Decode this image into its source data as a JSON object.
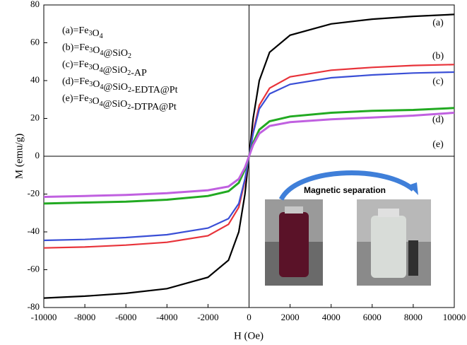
{
  "chart_data": {
    "type": "line",
    "xlabel": "H (Oe)",
    "ylabel": "M (emu/g)",
    "x": [
      -10000,
      -8000,
      -6000,
      -4000,
      -2000,
      -1000,
      -500,
      -200,
      0,
      200,
      500,
      1000,
      2000,
      4000,
      6000,
      8000,
      10000
    ],
    "series": [
      {
        "name": "(a)=Fe3O4",
        "color": "#000000",
        "values": [
          -75,
          -74,
          -72.5,
          -70,
          -64,
          -55,
          -40,
          -20,
          0,
          20,
          40,
          55,
          64,
          70,
          72.5,
          74,
          75
        ]
      },
      {
        "name": "(b)=Fe3O4@SiO2",
        "color": "#e8333a",
        "values": [
          -48.5,
          -48,
          -47,
          -45.5,
          -42,
          -36,
          -27,
          -13,
          0,
          13,
          27,
          36,
          42,
          45.5,
          47,
          48,
          48.5
        ]
      },
      {
        "name": "(c)=Fe3O4@SiO2-AP",
        "color": "#3a4fd6",
        "values": [
          -44.5,
          -44,
          -43,
          -41.5,
          -38,
          -33,
          -25,
          -12,
          0,
          12,
          25,
          33,
          38,
          41.5,
          43,
          44,
          44.5
        ]
      },
      {
        "name": "(d)=Fe3O4@SiO2-EDTA@Pt",
        "color": "#22aa22",
        "values": [
          -25,
          -24.5,
          -24,
          -23,
          -21,
          -18.5,
          -14,
          -7,
          0,
          7,
          14,
          18.5,
          21,
          23,
          24,
          24.5,
          25.5
        ]
      },
      {
        "name": "(e)=Fe3O4@SiO2-DTPA@Pt",
        "color": "#c060e0",
        "values": [
          -21.5,
          -21,
          -20.5,
          -19.5,
          -18,
          -16,
          -12,
          -6,
          0,
          6,
          12,
          16,
          18,
          19.5,
          20.5,
          21.5,
          23
        ]
      }
    ],
    "annotations": [
      "(a)",
      "(b)",
      "(c)",
      "(d)",
      "(e)",
      "Magnetic separation"
    ],
    "xlim": [
      -10000,
      10000
    ],
    "ylim": [
      -80,
      80
    ],
    "xticks": [
      -10000,
      -8000,
      -6000,
      -4000,
      -2000,
      0,
      2000,
      4000,
      6000,
      8000,
      10000
    ],
    "yticks": [
      -80,
      -60,
      -40,
      -20,
      0,
      20,
      40,
      60,
      80
    ]
  }
}
